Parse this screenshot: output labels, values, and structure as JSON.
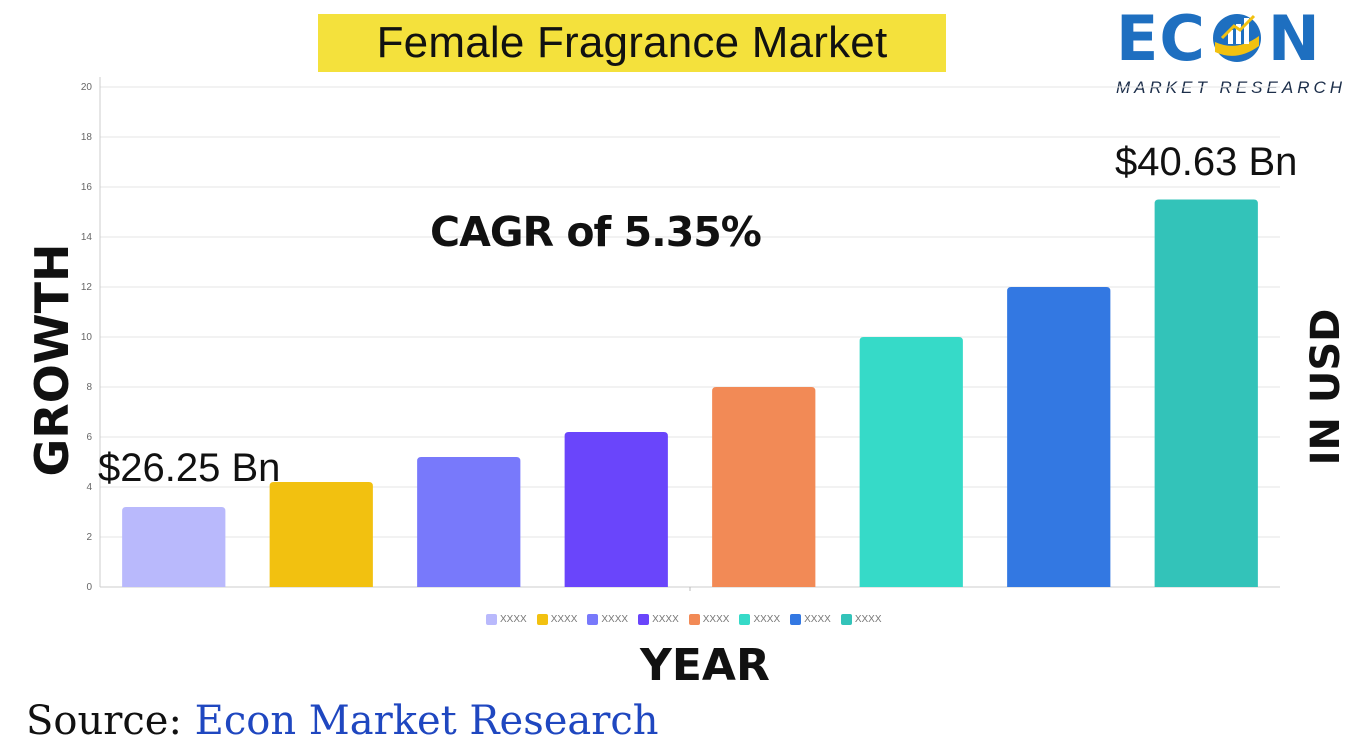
{
  "title": "Female Fragrance Market",
  "logo": {
    "text_before": "EC",
    "text_after": "N",
    "subtitle": "MARKET RESEARCH"
  },
  "cagr_text": "CAGR of 5.35%",
  "callouts": {
    "first": "$26.25 Bn",
    "last": "$40.63 Bn"
  },
  "axis_titles": {
    "y": "GROWTH",
    "y_right": "IN USD",
    "x": "YEAR"
  },
  "source": {
    "prefix": "Source: ",
    "name": "Econ Market Research"
  },
  "chart_data": {
    "type": "bar",
    "categories": [
      "XXXX",
      "XXXX",
      "XXXX",
      "XXXX",
      "XXXX",
      "XXXX",
      "XXXX",
      "XXXX"
    ],
    "values": [
      3.2,
      4.2,
      5.2,
      6.2,
      8.0,
      10.0,
      12.0,
      15.5
    ],
    "colors": [
      "#b9b9fc",
      "#f2c110",
      "#7879fb",
      "#6a45fb",
      "#f28a56",
      "#36dac8",
      "#3378e2",
      "#33c3b9"
    ],
    "ylim": [
      0,
      20
    ],
    "yticks": [
      0,
      2,
      4,
      6,
      8,
      10,
      12,
      14,
      16,
      18,
      20
    ],
    "grid": true,
    "legend_position": "bottom"
  }
}
